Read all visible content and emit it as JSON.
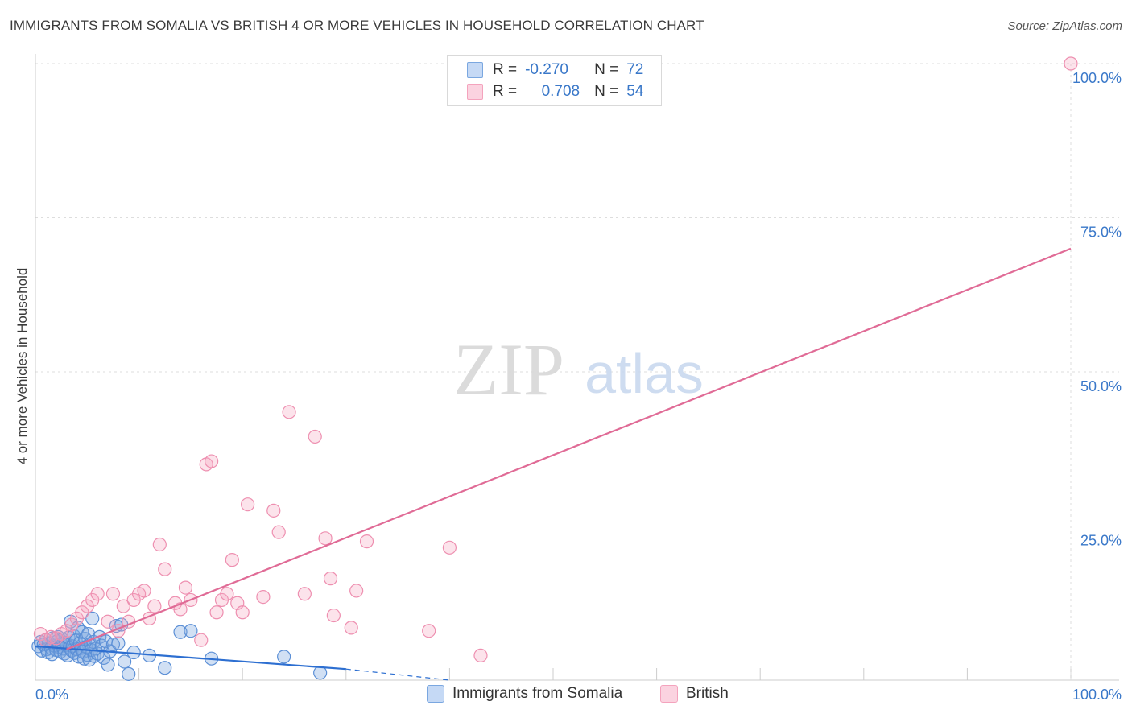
{
  "title": "IMMIGRANTS FROM SOMALIA VS BRITISH 4 OR MORE VEHICLES IN HOUSEHOLD CORRELATION CHART",
  "source": "Source: ZipAtlas.com",
  "watermark": {
    "zip": "ZIP",
    "atlas": "atlas"
  },
  "legend": {
    "r_label": "R =",
    "n_label": "N =",
    "series1": {
      "r": "-0.270",
      "n": "72"
    },
    "series2": {
      "r": "0.708",
      "n": "54"
    }
  },
  "chart_data": {
    "type": "scatter",
    "title": "IMMIGRANTS FROM SOMALIA VS BRITISH 4 OR MORE VEHICLES IN HOUSEHOLD CORRELATION CHART",
    "xlabel": "",
    "ylabel": "4 or more Vehicles in Household",
    "xlim": [
      0,
      100
    ],
    "ylim": [
      0,
      100
    ],
    "x_tick_labels": [
      "0.0%",
      "100.0%"
    ],
    "y_tick_labels": [
      "25.0%",
      "50.0%",
      "75.0%",
      "100.0%"
    ],
    "y_ticks": [
      25,
      50,
      75,
      100
    ],
    "grid": true,
    "legend_position": "bottom-center",
    "series": [
      {
        "name": "Immigrants from Somalia",
        "color": "#7aa7e0",
        "line_color": "#2d6fd1",
        "trend": {
          "x0": 0,
          "y0": 5.5,
          "x1": 30,
          "y1": 1.8,
          "dashed_to_x": 40,
          "dashed_to_y": 0
        },
        "points": [
          [
            0.3,
            5.5
          ],
          [
            0.5,
            6.2
          ],
          [
            0.6,
            4.8
          ],
          [
            0.8,
            5.8
          ],
          [
            1.0,
            6.5
          ],
          [
            1.1,
            5.0
          ],
          [
            1.2,
            4.5
          ],
          [
            1.3,
            6.0
          ],
          [
            1.5,
            5.2
          ],
          [
            1.6,
            4.2
          ],
          [
            1.7,
            6.8
          ],
          [
            1.8,
            5.6
          ],
          [
            2.0,
            4.9
          ],
          [
            2.1,
            6.3
          ],
          [
            2.2,
            7.0
          ],
          [
            2.3,
            5.4
          ],
          [
            2.4,
            4.6
          ],
          [
            2.5,
            5.9
          ],
          [
            2.6,
            6.6
          ],
          [
            2.7,
            5.1
          ],
          [
            2.8,
            4.3
          ],
          [
            2.9,
            6.1
          ],
          [
            3.0,
            5.7
          ],
          [
            3.1,
            4.0
          ],
          [
            3.2,
            6.9
          ],
          [
            3.3,
            5.3
          ],
          [
            3.4,
            9.5
          ],
          [
            3.5,
            4.8
          ],
          [
            3.6,
            5.5
          ],
          [
            3.7,
            7.2
          ],
          [
            3.8,
            4.4
          ],
          [
            3.9,
            6.4
          ],
          [
            4.0,
            5.0
          ],
          [
            4.1,
            8.5
          ],
          [
            4.2,
            3.8
          ],
          [
            4.3,
            6.0
          ],
          [
            4.4,
            5.2
          ],
          [
            4.5,
            7.8
          ],
          [
            4.6,
            4.6
          ],
          [
            4.7,
            3.5
          ],
          [
            4.8,
            6.7
          ],
          [
            4.9,
            5.4
          ],
          [
            5.0,
            4.1
          ],
          [
            5.1,
            7.5
          ],
          [
            5.2,
            3.3
          ],
          [
            5.3,
            5.9
          ],
          [
            5.4,
            4.9
          ],
          [
            5.5,
            10.0
          ],
          [
            5.6,
            6.2
          ],
          [
            5.7,
            3.9
          ],
          [
            5.8,
            5.1
          ],
          [
            6.0,
            4.3
          ],
          [
            6.2,
            7.0
          ],
          [
            6.4,
            5.6
          ],
          [
            6.6,
            3.6
          ],
          [
            6.8,
            6.3
          ],
          [
            7.0,
            2.5
          ],
          [
            7.2,
            4.7
          ],
          [
            7.5,
            5.8
          ],
          [
            7.8,
            8.8
          ],
          [
            8.0,
            6.0
          ],
          [
            8.3,
            9.0
          ],
          [
            8.6,
            3.0
          ],
          [
            9.0,
            1.0
          ],
          [
            9.5,
            4.5
          ],
          [
            11.0,
            4.0
          ],
          [
            12.5,
            2.0
          ],
          [
            14.0,
            7.8
          ],
          [
            15.0,
            8.0
          ],
          [
            17.0,
            3.5
          ],
          [
            24.0,
            3.8
          ],
          [
            27.5,
            1.2
          ]
        ]
      },
      {
        "name": "British",
        "color": "#f4a3bd",
        "line_color": "#e06b96",
        "trend": {
          "x0": 3,
          "y0": 5.0,
          "x1": 100,
          "y1": 70.0
        },
        "points": [
          [
            0.5,
            7.5
          ],
          [
            1.0,
            6.5
          ],
          [
            1.5,
            7.0
          ],
          [
            2.0,
            6.8
          ],
          [
            2.5,
            7.5
          ],
          [
            3.0,
            8.0
          ],
          [
            3.5,
            9.0
          ],
          [
            4.0,
            10.0
          ],
          [
            4.5,
            11.0
          ],
          [
            5.0,
            12.0
          ],
          [
            5.5,
            13.0
          ],
          [
            6.0,
            14.0
          ],
          [
            7.0,
            9.5
          ],
          [
            7.5,
            14.0
          ],
          [
            8.0,
            8.0
          ],
          [
            8.5,
            12.0
          ],
          [
            9.0,
            9.5
          ],
          [
            9.5,
            13.0
          ],
          [
            10.0,
            14.0
          ],
          [
            10.5,
            14.5
          ],
          [
            11.0,
            10.0
          ],
          [
            11.5,
            12.0
          ],
          [
            12.0,
            22.0
          ],
          [
            12.5,
            18.0
          ],
          [
            13.5,
            12.5
          ],
          [
            14.0,
            11.5
          ],
          [
            14.5,
            15.0
          ],
          [
            15.0,
            13.0
          ],
          [
            16.0,
            6.5
          ],
          [
            16.5,
            35.0
          ],
          [
            17.0,
            35.5
          ],
          [
            17.5,
            11.0
          ],
          [
            18.0,
            13.0
          ],
          [
            18.5,
            14.0
          ],
          [
            19.0,
            19.5
          ],
          [
            19.5,
            12.5
          ],
          [
            20.0,
            11.0
          ],
          [
            20.5,
            28.5
          ],
          [
            22.0,
            13.5
          ],
          [
            23.0,
            27.5
          ],
          [
            23.5,
            24.0
          ],
          [
            24.5,
            43.5
          ],
          [
            26.0,
            14.0
          ],
          [
            27.0,
            39.5
          ],
          [
            28.0,
            23.0
          ],
          [
            28.5,
            16.5
          ],
          [
            28.8,
            10.5
          ],
          [
            30.5,
            8.5
          ],
          [
            31.0,
            14.5
          ],
          [
            32.0,
            22.5
          ],
          [
            38.0,
            8.0
          ],
          [
            40.0,
            21.5
          ],
          [
            43.0,
            4.0
          ],
          [
            100.0,
            100.0
          ]
        ]
      }
    ]
  },
  "bottom_legend": {
    "item1": "Immigrants from Somalia",
    "item2": "British"
  }
}
